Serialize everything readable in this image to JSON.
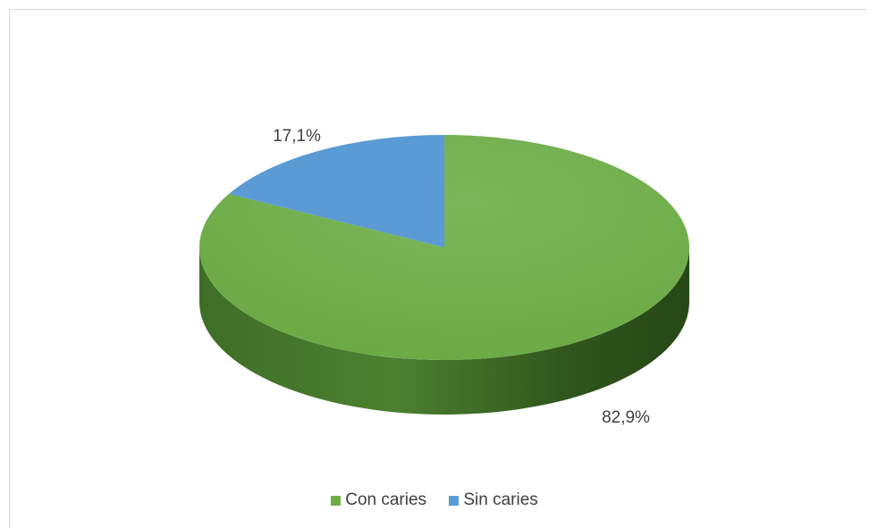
{
  "chart_data": {
    "type": "pie",
    "title": "",
    "categories": [
      "Con caries",
      "Sin caries"
    ],
    "values": [
      82.9,
      17.1
    ],
    "labels": [
      "82,9%",
      "17,1%"
    ],
    "colors": [
      "#70ad47",
      "#5b9bd5"
    ],
    "legend": "bottom",
    "style": "3d"
  },
  "legend": {
    "items": [
      {
        "label": "Con caries",
        "color": "#70ad47"
      },
      {
        "label": "Sin caries",
        "color": "#5b9bd5"
      }
    ]
  }
}
